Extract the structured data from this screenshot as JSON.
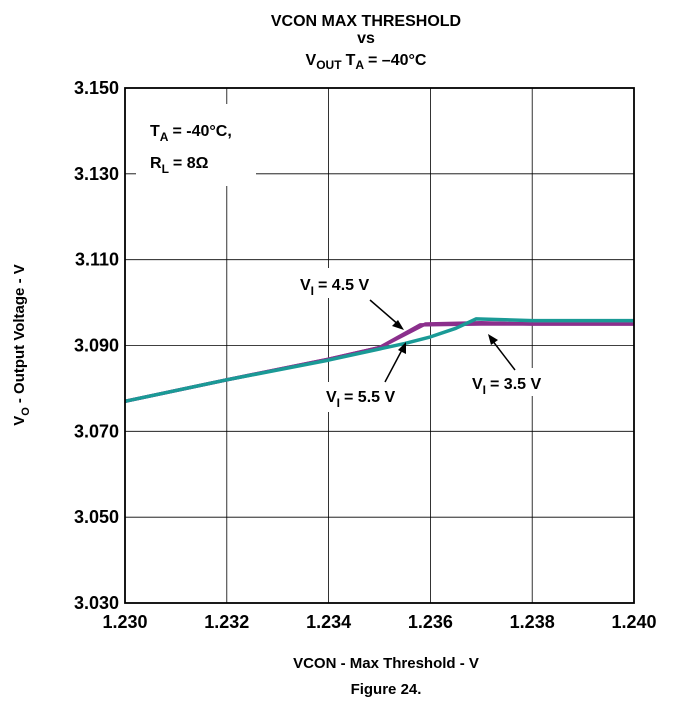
{
  "chart_data": {
    "type": "line",
    "title": {
      "line1": "VCON MAX THRESHOLD",
      "line2": "vs",
      "line3_v": "V",
      "line3_v_sub": "OUT",
      "line3_t": "T",
      "line3_t_sub": "A",
      "line3_rest": "= –40°C"
    },
    "xlabel": "VCON - Max Threshold - V",
    "ylabel": {
      "v": "V",
      "sub": "O",
      "rest": "- Output Voltage - V"
    },
    "caption": "Figure 24.",
    "xlim": [
      1.23,
      1.24
    ],
    "ylim": [
      3.03,
      3.15
    ],
    "x_ticks": [
      1.23,
      1.232,
      1.234,
      1.236,
      1.238,
      1.24
    ],
    "x_tick_labels": [
      "1.230",
      "1.232",
      "1.234",
      "1.236",
      "1.238",
      "1.240"
    ],
    "y_ticks": [
      3.03,
      3.05,
      3.07,
      3.09,
      3.11,
      3.13,
      3.15
    ],
    "y_tick_labels": [
      "3.030",
      "3.050",
      "3.070",
      "3.090",
      "3.110",
      "3.130",
      "3.150"
    ],
    "grid": true,
    "conditions": {
      "ta_t": "T",
      "ta_sub": "A",
      "ta_rest": "= -40°C,",
      "rl_r": "R",
      "rl_sub": "L",
      "rl_rest": "= 8Ω"
    },
    "series": [
      {
        "name": "V_I = 4.5 V",
        "label": {
          "v": "V",
          "sub": "I",
          "rest": "= 4.5 V"
        },
        "color": "#8B2F8C",
        "x": [
          1.23,
          1.232,
          1.234,
          1.235,
          1.2359,
          1.237,
          1.238,
          1.24
        ],
        "y": [
          3.077,
          3.082,
          3.0868,
          3.0895,
          3.095,
          3.0953,
          3.095,
          3.095
        ]
      },
      {
        "name": "V_I = 3.5 V",
        "label": {
          "v": "V",
          "sub": "I",
          "rest": "= 3.5 V"
        },
        "color": "#8B2F8C",
        "x": [
          1.23,
          1.232,
          1.234,
          1.235,
          1.2358,
          1.237,
          1.238,
          1.24
        ],
        "y": [
          3.077,
          3.082,
          3.0868,
          3.0895,
          3.0948,
          3.095,
          3.095,
          3.095
        ]
      },
      {
        "name": "V_I = 5.5 V",
        "label": {
          "v": "V",
          "sub": "I",
          "rest": "= 5.5 V"
        },
        "color": "#1A9A96",
        "x": [
          1.23,
          1.232,
          1.234,
          1.2355,
          1.236,
          1.2365,
          1.2369,
          1.238,
          1.24
        ],
        "y": [
          3.077,
          3.082,
          3.0866,
          3.0905,
          3.092,
          3.094,
          3.0962,
          3.0958,
          3.0958
        ]
      }
    ]
  }
}
